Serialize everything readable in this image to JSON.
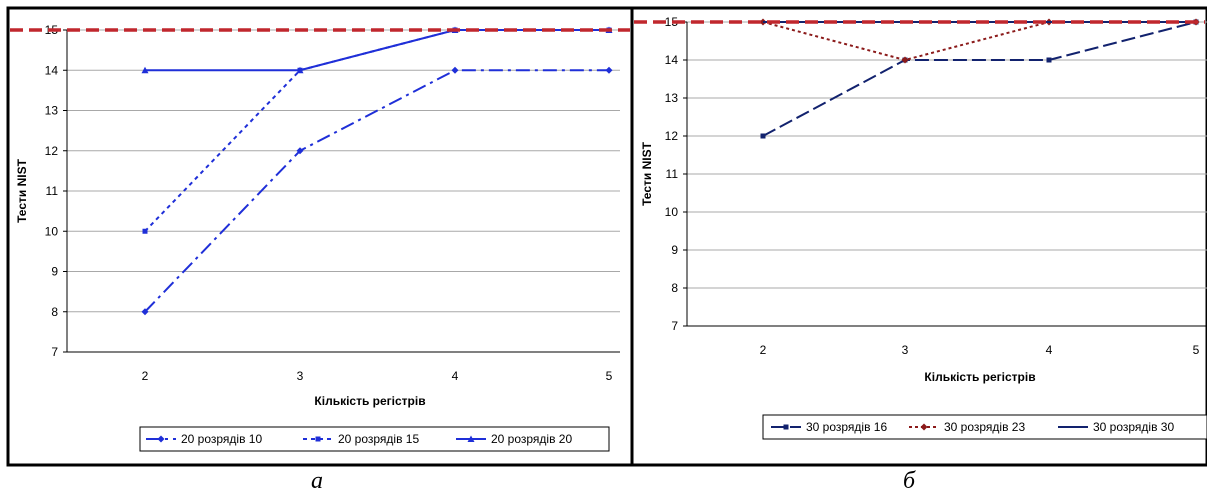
{
  "captions": {
    "left": "а",
    "right": "б"
  },
  "chart_data": [
    {
      "type": "line",
      "title": "",
      "xlabel": "Кількість регістрів",
      "ylabel": "Тести NIST",
      "categories": [
        "2",
        "3",
        "4",
        "5"
      ],
      "ylim": [
        7,
        15
      ],
      "yticks": [
        7,
        8,
        9,
        10,
        11,
        12,
        13,
        14,
        15
      ],
      "grid": true,
      "legend_position": "bottom-right",
      "reference_line": {
        "value": 15,
        "color": "#c0272d",
        "style": "dashed"
      },
      "series": [
        {
          "name": "20 розрядів 10",
          "values": [
            8,
            12,
            14,
            14
          ],
          "color": "#1f2fd8",
          "dash": "14,5,3,5",
          "marker": "diamond"
        },
        {
          "name": "20 розрядів 15",
          "values": [
            10,
            14,
            15,
            15
          ],
          "color": "#1f2fd8",
          "dash": "4,4",
          "marker": "square"
        },
        {
          "name": "20 розрядів 20",
          "values": [
            14,
            14,
            15,
            15
          ],
          "color": "#1f2fd8",
          "dash": "",
          "marker": "triangle"
        }
      ]
    },
    {
      "type": "line",
      "title": "",
      "xlabel": "Кількість регістрів",
      "ylabel": "Тести NIST",
      "categories": [
        "2",
        "3",
        "4",
        "5"
      ],
      "ylim": [
        7,
        15
      ],
      "yticks": [
        7,
        8,
        9,
        10,
        11,
        12,
        13,
        14,
        15
      ],
      "grid": true,
      "legend_position": "bottom-right",
      "reference_line": {
        "value": 15,
        "color": "#c0272d",
        "style": "dashed"
      },
      "series": [
        {
          "name": "30 розрядів 16",
          "values": [
            12,
            14,
            14,
            15
          ],
          "color": "#12226e",
          "dash": "14,5",
          "marker": "square"
        },
        {
          "name": "30 розрядів 23",
          "values": [
            15,
            14,
            15,
            15
          ],
          "color": "#8b1a1a",
          "dash": "3,3",
          "marker": "diamond"
        },
        {
          "name": "30 розрядів 30",
          "values": [
            15,
            15,
            15,
            15
          ],
          "color": "#12226e",
          "dash": "",
          "marker": "none"
        }
      ]
    }
  ]
}
